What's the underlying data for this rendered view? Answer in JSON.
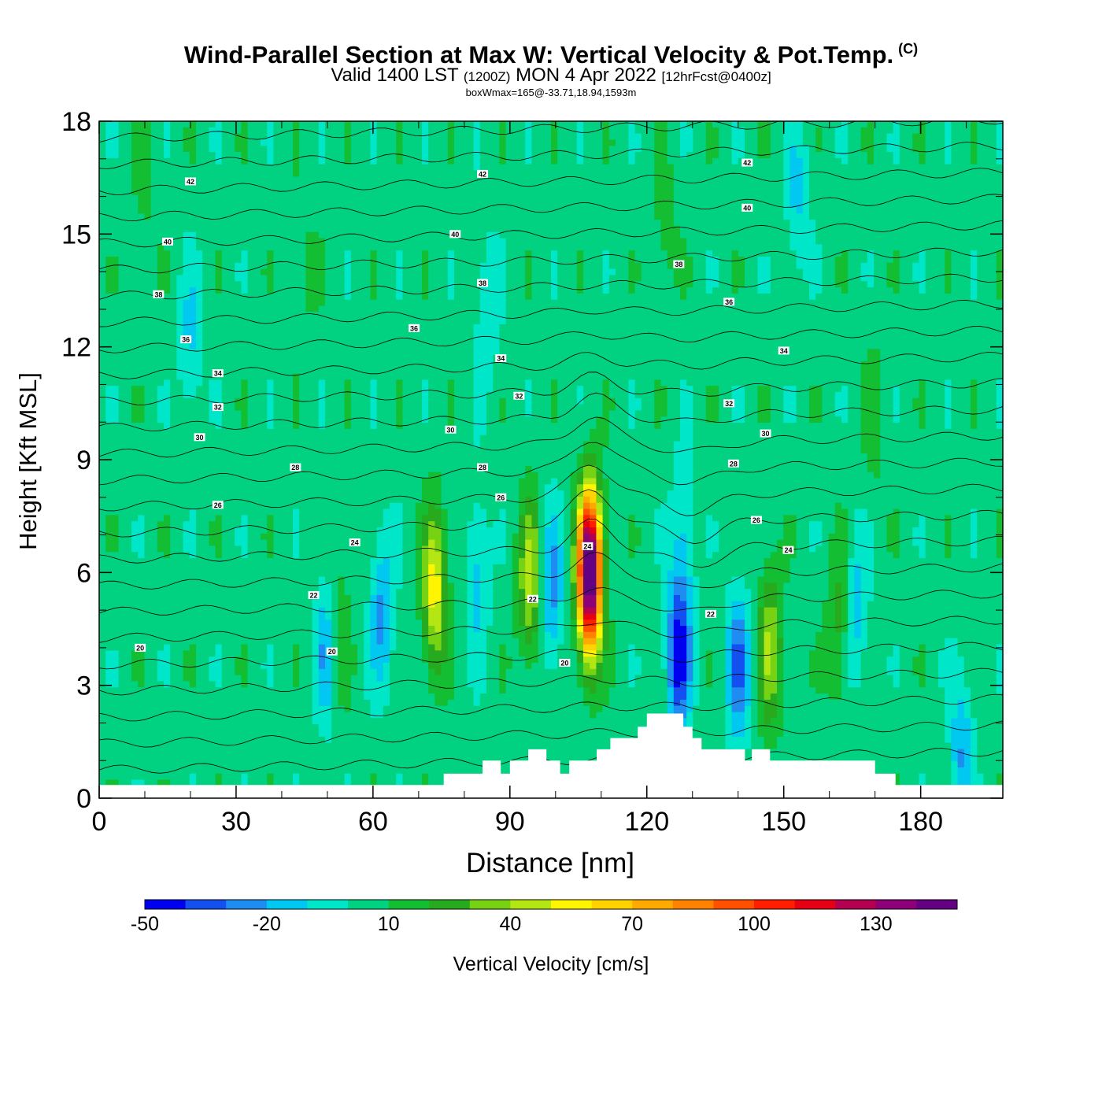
{
  "title": {
    "main": "Wind-Parallel Section at Max W: Vertical Velocity & Pot.Temp.",
    "copyright": "(C)",
    "valid_prefix": "Valid 1400 LST",
    "valid_zulu": "(1200Z)",
    "valid_date": "MON 4 Apr 2022",
    "forecast": "[12hrFcst@0400z]",
    "subtitle": "boxWmax=165@-33.71,18.94,1593m"
  },
  "chart_data": {
    "type": "heatmap",
    "xlabel": "Distance [nm]",
    "ylabel": "Height [Kft MSL]",
    "xlim": [
      0,
      198
    ],
    "ylim": [
      0,
      18
    ],
    "x_ticks": [
      "0",
      "30",
      "60",
      "90",
      "120",
      "150",
      "180"
    ],
    "x_tick_values": [
      0,
      30,
      60,
      90,
      120,
      150,
      180
    ],
    "y_ticks": [
      "0",
      "3",
      "6",
      "9",
      "12",
      "15",
      "18"
    ],
    "y_tick_values": [
      0,
      3,
      6,
      9,
      12,
      15,
      18
    ],
    "colorbar": {
      "label": "Vertical Velocity [cm/s]",
      "min": -50,
      "max": 150,
      "step": 10,
      "tick_labels": [
        "-50",
        "-20",
        "10",
        "40",
        "70",
        "100",
        "130"
      ],
      "tick_values": [
        -50,
        -20,
        10,
        40,
        70,
        100,
        130
      ],
      "colors": [
        "#0000f0",
        "#1450f0",
        "#1e8cf0",
        "#00c8f0",
        "#00e6c8",
        "#00d282",
        "#14be32",
        "#28aa1e",
        "#78d214",
        "#b4e614",
        "#fff500",
        "#ffd200",
        "#ffaa00",
        "#ff8200",
        "#ff5000",
        "#ff1e00",
        "#e60014",
        "#b40050",
        "#8c0078",
        "#640082"
      ]
    },
    "background_value": 5,
    "w_features": [
      {
        "x": 107.5,
        "y": 6.0,
        "value": 165
      },
      {
        "x": 73.5,
        "y": 5.5,
        "value": 55
      },
      {
        "x": 94.5,
        "y": 5.8,
        "value": 45
      },
      {
        "x": 147,
        "y": 4.0,
        "value": 40
      },
      {
        "x": 52,
        "y": 4.5,
        "value": 25
      },
      {
        "x": 162,
        "y": 4.5,
        "value": 25
      },
      {
        "x": 127,
        "y": 3.8,
        "value": -45
      },
      {
        "x": 140,
        "y": 3.5,
        "value": -30
      },
      {
        "x": 50,
        "y": 4.0,
        "value": -25
      },
      {
        "x": 62,
        "y": 5.0,
        "value": -22
      },
      {
        "x": 99,
        "y": 5.5,
        "value": -25
      },
      {
        "x": 83,
        "y": 6.0,
        "value": -15
      },
      {
        "x": 166,
        "y": 5.0,
        "value": -15
      },
      {
        "x": 189,
        "y": 1.2,
        "value": -20
      },
      {
        "x": 20,
        "y": 12.0,
        "value": -12
      },
      {
        "x": 85,
        "y": 13.0,
        "value": -10
      },
      {
        "x": 128,
        "y": 7.0,
        "value": -12
      },
      {
        "x": 153,
        "y": 16.0,
        "value": -12
      },
      {
        "x": 170,
        "y": 10.0,
        "value": 15
      },
      {
        "x": 124,
        "y": 15.0,
        "value": 15
      },
      {
        "x": 10,
        "y": 16.0,
        "value": 12
      },
      {
        "x": 45,
        "y": 14.0,
        "value": 12
      }
    ],
    "theta_contour_labels": [
      {
        "x": 20,
        "y": 16.4,
        "label": "42"
      },
      {
        "x": 84,
        "y": 16.6,
        "label": "42"
      },
      {
        "x": 142,
        "y": 16.9,
        "label": "42"
      },
      {
        "x": 15,
        "y": 14.8,
        "label": "40"
      },
      {
        "x": 78,
        "y": 15.0,
        "label": "40"
      },
      {
        "x": 142,
        "y": 15.7,
        "label": "40"
      },
      {
        "x": 13,
        "y": 13.4,
        "label": "38"
      },
      {
        "x": 84,
        "y": 13.7,
        "label": "38"
      },
      {
        "x": 127,
        "y": 14.2,
        "label": "38"
      },
      {
        "x": 19,
        "y": 12.2,
        "label": "36"
      },
      {
        "x": 69,
        "y": 12.5,
        "label": "36"
      },
      {
        "x": 138,
        "y": 13.2,
        "label": "36"
      },
      {
        "x": 26,
        "y": 11.3,
        "label": "34"
      },
      {
        "x": 88,
        "y": 11.7,
        "label": "34"
      },
      {
        "x": 150,
        "y": 11.9,
        "label": "34"
      },
      {
        "x": 26,
        "y": 10.4,
        "label": "32"
      },
      {
        "x": 92,
        "y": 10.7,
        "label": "32"
      },
      {
        "x": 138,
        "y": 10.5,
        "label": "32"
      },
      {
        "x": 22,
        "y": 9.6,
        "label": "30"
      },
      {
        "x": 77,
        "y": 9.8,
        "label": "30"
      },
      {
        "x": 146,
        "y": 9.7,
        "label": "30"
      },
      {
        "x": 43,
        "y": 8.8,
        "label": "28"
      },
      {
        "x": 84,
        "y": 8.8,
        "label": "28"
      },
      {
        "x": 139,
        "y": 8.9,
        "label": "28"
      },
      {
        "x": 26,
        "y": 7.8,
        "label": "26"
      },
      {
        "x": 88,
        "y": 8.0,
        "label": "26"
      },
      {
        "x": 144,
        "y": 7.4,
        "label": "26"
      },
      {
        "x": 56,
        "y": 6.8,
        "label": "24"
      },
      {
        "x": 107,
        "y": 6.7,
        "label": "24"
      },
      {
        "x": 151,
        "y": 6.6,
        "label": "24"
      },
      {
        "x": 47,
        "y": 5.4,
        "label": "22"
      },
      {
        "x": 95,
        "y": 5.3,
        "label": "22"
      },
      {
        "x": 134,
        "y": 4.9,
        "label": "22"
      },
      {
        "x": 9,
        "y": 4.0,
        "label": "20"
      },
      {
        "x": 51,
        "y": 3.9,
        "label": "20"
      },
      {
        "x": 102,
        "y": 3.6,
        "label": "20"
      }
    ],
    "terrain_kft": [
      [
        0,
        0.35
      ],
      [
        75.5,
        0.35
      ],
      [
        75.5,
        0.65
      ],
      [
        84,
        0.65
      ],
      [
        84,
        1.0
      ],
      [
        88,
        1.0
      ],
      [
        88,
        0.65
      ],
      [
        90,
        0.65
      ],
      [
        90,
        1.0
      ],
      [
        94,
        1.0
      ],
      [
        94,
        1.3
      ],
      [
        98,
        1.3
      ],
      [
        98,
        1.0
      ],
      [
        101,
        1.0
      ],
      [
        101,
        0.65
      ],
      [
        103,
        0.65
      ],
      [
        103,
        1.0
      ],
      [
        109,
        1.0
      ],
      [
        109,
        1.3
      ],
      [
        112,
        1.3
      ],
      [
        112,
        1.6
      ],
      [
        118,
        1.6
      ],
      [
        118,
        1.9
      ],
      [
        120,
        1.9
      ],
      [
        120,
        2.25
      ],
      [
        128,
        2.25
      ],
      [
        128,
        1.9
      ],
      [
        130,
        1.9
      ],
      [
        130,
        1.6
      ],
      [
        132,
        1.6
      ],
      [
        132,
        1.3
      ],
      [
        141.5,
        1.3
      ],
      [
        141.5,
        1.0
      ],
      [
        143,
        1.0
      ],
      [
        143,
        1.3
      ],
      [
        147,
        1.3
      ],
      [
        147,
        1.0
      ],
      [
        170,
        1.0
      ],
      [
        170,
        0.65
      ],
      [
        174.5,
        0.65
      ],
      [
        174.5,
        0.35
      ],
      [
        198,
        0.35
      ]
    ]
  }
}
